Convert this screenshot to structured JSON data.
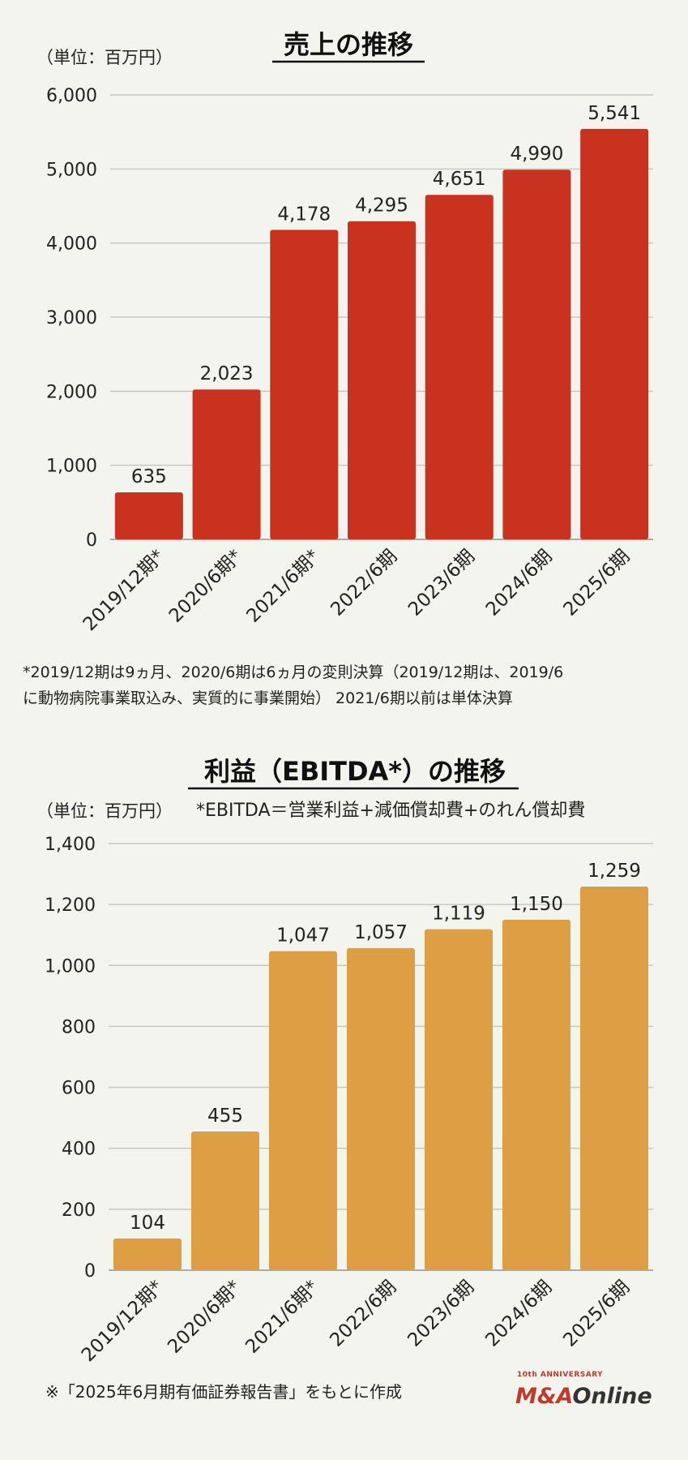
{
  "chart_data": [
    {
      "type": "bar",
      "title": "売上の推移",
      "unit_label": "（単位：百万円）",
      "categories": [
        "2019/12期*",
        "2020/6期*",
        "2021/6期*",
        "2022/6期",
        "2023/6期",
        "2024/6期",
        "2025/6期"
      ],
      "values": [
        635,
        2023,
        4178,
        4295,
        4651,
        4990,
        5541
      ],
      "value_labels": [
        "635",
        "2,023",
        "4,178",
        "4,295",
        "4,651",
        "4,990",
        "5,541"
      ],
      "ylim": [
        0,
        6000
      ],
      "yticks": [
        0,
        1000,
        2000,
        3000,
        4000,
        5000,
        6000
      ],
      "ytick_labels": [
        "0",
        "1,000",
        "2,000",
        "3,000",
        "4,000",
        "5,000",
        "6,000"
      ],
      "color": "#c9321f",
      "grid": true,
      "footnote_lines": [
        "*2019/12期は9ヵ月、2020/6期は6ヵ月の変則決算（2019/12期は、2019/6",
        "に動物病院事業取込み、実質的に事業開始） 2021/6期以前は単体決算"
      ]
    },
    {
      "type": "bar",
      "title": "利益（EBITDA*）の推移",
      "unit_label": "（単位：百万円）",
      "definition_note": "*EBITDA＝営業利益+減価償却費+のれん償却費",
      "categories": [
        "2019/12期*",
        "2020/6期*",
        "2021/6期*",
        "2022/6期",
        "2023/6期",
        "2024/6期",
        "2025/6期"
      ],
      "values": [
        104,
        455,
        1047,
        1057,
        1119,
        1150,
        1259
      ],
      "value_labels": [
        "104",
        "455",
        "1,047",
        "1,057",
        "1,119",
        "1,150",
        "1,259"
      ],
      "ylim": [
        0,
        1400
      ],
      "yticks": [
        0,
        200,
        400,
        600,
        800,
        1000,
        1200,
        1400
      ],
      "ytick_labels": [
        "0",
        "200",
        "400",
        "600",
        "800",
        "1,000",
        "1,200",
        "1,400"
      ],
      "color": "#de9e44",
      "grid": true
    }
  ],
  "source_note": "※「2025年6月期有価証券報告書」をもとに作成",
  "logo": {
    "tagline": "10th ANNIVERSARY",
    "brand_red": "M&A",
    "brand_dark": "Online"
  }
}
